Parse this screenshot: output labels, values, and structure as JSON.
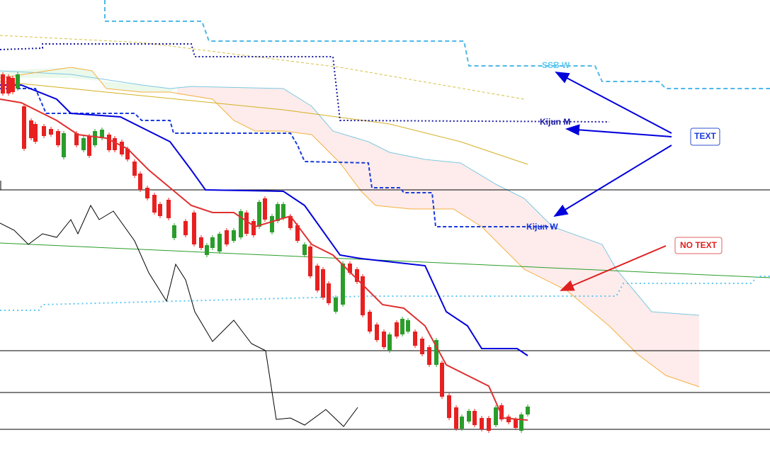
{
  "annotations": {
    "ssb_w": "SSB W",
    "kijun_m": "Kijun M",
    "kijun_w": "Kijun W",
    "text_box": "TEXT",
    "no_text_box": "NO TEXT"
  }
}
